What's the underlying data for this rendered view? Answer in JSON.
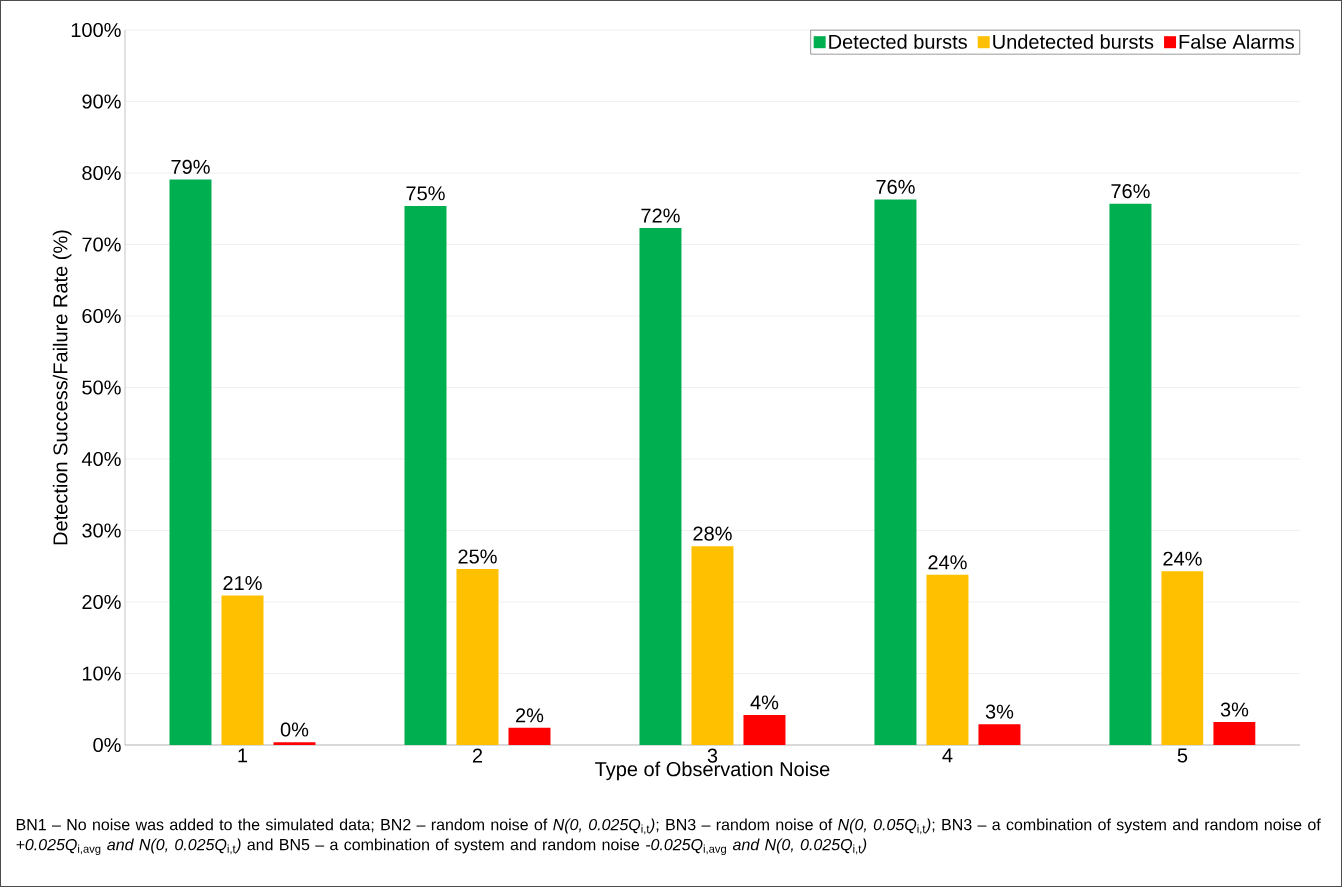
{
  "chart_data": {
    "type": "bar",
    "xlabel": "Type of Observation Noise",
    "ylabel": "Detection Success/Failure Rate (%)",
    "categories": [
      "1",
      "2",
      "3",
      "4",
      "5"
    ],
    "series": [
      {
        "name": "Detected bursts",
        "color": "#00b050",
        "values": [
          79.1,
          75.4,
          72.3,
          76.3,
          75.7
        ],
        "value_labels": [
          "79%",
          "75%",
          "72%",
          "76%",
          "76%"
        ]
      },
      {
        "name": "Undetected bursts",
        "color": "#ffc000",
        "values": [
          20.9,
          24.6,
          27.8,
          23.8,
          24.3
        ],
        "value_labels": [
          "21%",
          "25%",
          "28%",
          "24%",
          "24%"
        ]
      },
      {
        "name": "False Alarms",
        "color": "#ff0000",
        "values": [
          0.4,
          2.4,
          4.2,
          2.9,
          3.2
        ],
        "value_labels": [
          "0%",
          "2%",
          "4%",
          "3%",
          "3%"
        ]
      }
    ],
    "ylim": [
      0,
      100
    ],
    "yticks": [
      {
        "value": 0,
        "label": "0%"
      },
      {
        "value": 10,
        "label": "10%"
      },
      {
        "value": 20,
        "label": "20%"
      },
      {
        "value": 30,
        "label": "30%"
      },
      {
        "value": 40,
        "label": "40%"
      },
      {
        "value": 50,
        "label": "50%"
      },
      {
        "value": 60,
        "label": "60%"
      },
      {
        "value": 70,
        "label": "70%"
      },
      {
        "value": 80,
        "label": "80%"
      },
      {
        "value": 90,
        "label": "90%"
      },
      {
        "value": 100,
        "label": "100%"
      }
    ],
    "grid": "y",
    "legend": "top right",
    "annotations": [
      "BN1 – No noise was added to the simulated data; BN2 – random noise of *N(0, 0.025Q*$_{i,t}$*)*; BN3 – random noise of *N(0, 0.05Q*$_{i,t}$*)*; BN3 – a combination of system and random noise of *+0.025Q*$_{i,avg}$ *and N(0, 0.025Q*$_{i,t}$*)* and BN5 – a combination of system and random noise *-0.025Q*$_{i,avg}$ *and N(0, 0.025Q*$_{i,t}$*)*"
    ]
  }
}
